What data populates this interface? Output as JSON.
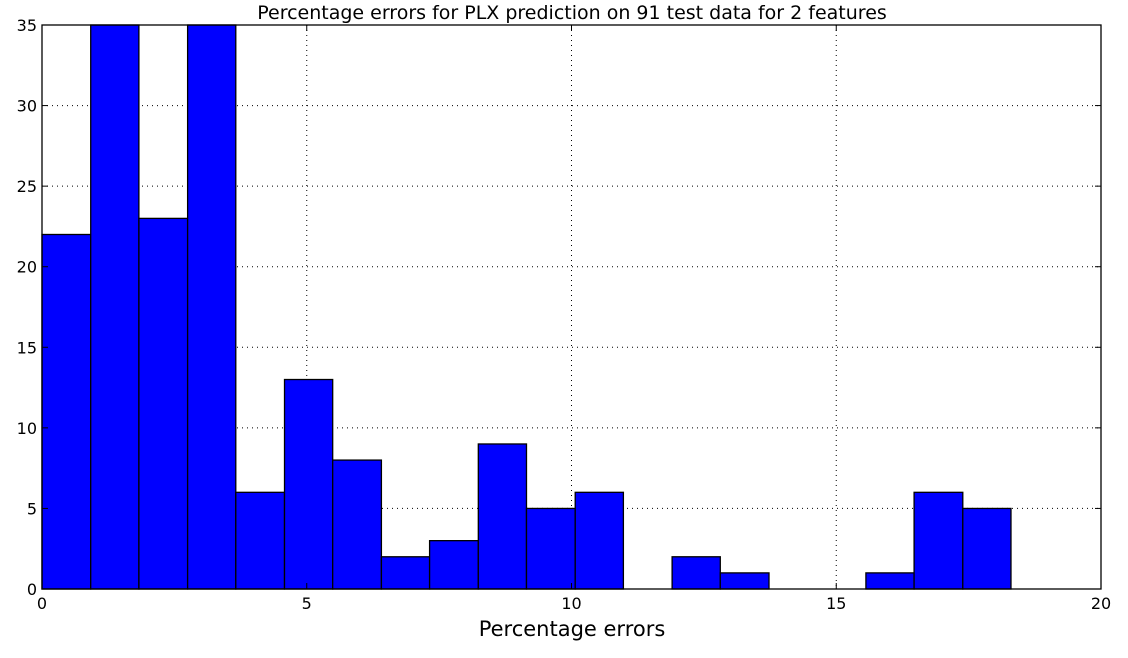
{
  "chart_data": {
    "type": "bar",
    "title": "Percentage errors for PLX prediction on 91 test data for 2 features",
    "xlabel": "Percentage errors",
    "ylabel": "",
    "xlim": [
      0,
      20
    ],
    "ylim": [
      0,
      35
    ],
    "grid": true,
    "bar_color": "#0000ff",
    "bin_edges": [
      0,
      0.92,
      1.83,
      2.75,
      3.66,
      4.58,
      5.49,
      6.41,
      7.32,
      8.24,
      9.15,
      10.07,
      10.98,
      11.9,
      12.81,
      13.73,
      14.64,
      15.56,
      16.47,
      17.39,
      18.3
    ],
    "counts": [
      22,
      35,
      23,
      35,
      6,
      13,
      8,
      2,
      3,
      9,
      5,
      6,
      0,
      2,
      1,
      0,
      0,
      1,
      6,
      5
    ],
    "xticks": [
      0,
      5,
      10,
      15,
      20
    ],
    "xtick_labels": [
      "0",
      "5",
      "10",
      "15",
      "20"
    ],
    "yticks": [
      0,
      5,
      10,
      15,
      20,
      25,
      30,
      35
    ],
    "ytick_labels": [
      "0",
      "5",
      "10",
      "15",
      "20",
      "25",
      "30",
      "35"
    ]
  }
}
